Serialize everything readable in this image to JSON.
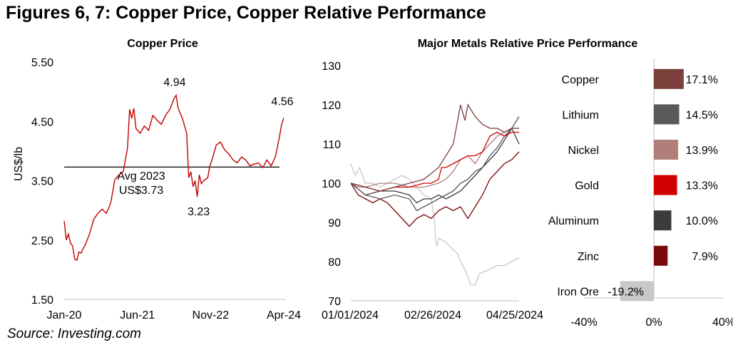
{
  "header": {
    "title": "Figures 6, 7: Copper Price, Copper Relative Performance",
    "source": "Source: Investing.com"
  },
  "colors": {
    "copper_line": "#c00000",
    "avg_line": "#000000",
    "Copper": "#7b3f3c",
    "Lithium": "#5a5a5a",
    "Nickel": "#b07f7a",
    "Gold": "#d00000",
    "Aluminum": "#3c3c3c",
    "Zinc": "#7a0a0a",
    "Iron Ore": "#c8c8c8"
  },
  "chart_data": [
    {
      "id": "copper-price",
      "type": "line",
      "title": "Copper Price",
      "ylabel": "US$/lb",
      "xlabel": "",
      "ylim": [
        1.5,
        5.5
      ],
      "yticks": [
        "1.50",
        "2.50",
        "3.50",
        "4.50",
        "5.50"
      ],
      "xtick_labels": [
        "Jan-20",
        "Jun-21",
        "Nov-22",
        "Apr-24"
      ],
      "x_range_months": [
        0,
        52
      ],
      "series": [
        {
          "name": "Copper",
          "points": [
            [
              0,
              2.82
            ],
            [
              0.5,
              2.5
            ],
            [
              1,
              2.6
            ],
            [
              1.5,
              2.45
            ],
            [
              2,
              2.4
            ],
            [
              2.5,
              2.18
            ],
            [
              3,
              2.16
            ],
            [
              3.5,
              2.3
            ],
            [
              4,
              2.28
            ],
            [
              4.5,
              2.36
            ],
            [
              5,
              2.42
            ],
            [
              6,
              2.6
            ],
            [
              7,
              2.85
            ],
            [
              8,
              2.95
            ],
            [
              9,
              3.02
            ],
            [
              10,
              2.95
            ],
            [
              11,
              3.12
            ],
            [
              12,
              3.52
            ],
            [
              13,
              3.6
            ],
            [
              14,
              3.65
            ],
            [
              15,
              4.05
            ],
            [
              15.5,
              4.7
            ],
            [
              16,
              4.55
            ],
            [
              16.5,
              4.72
            ],
            [
              17,
              4.38
            ],
            [
              18,
              4.3
            ],
            [
              19,
              4.42
            ],
            [
              20,
              4.35
            ],
            [
              21,
              4.6
            ],
            [
              22,
              4.52
            ],
            [
              23,
              4.45
            ],
            [
              24,
              4.6
            ],
            [
              25,
              4.7
            ],
            [
              26,
              4.88
            ],
            [
              26.5,
              4.94
            ],
            [
              27,
              4.72
            ],
            [
              28,
              4.55
            ],
            [
              29,
              4.3
            ],
            [
              29.5,
              3.55
            ],
            [
              30,
              3.65
            ],
            [
              30.5,
              3.4
            ],
            [
              31,
              3.5
            ],
            [
              31.5,
              3.23
            ],
            [
              32,
              3.6
            ],
            [
              32.5,
              3.45
            ],
            [
              33,
              3.5
            ],
            [
              34,
              3.55
            ],
            [
              34.5,
              3.75
            ],
            [
              35,
              3.85
            ],
            [
              36,
              4.1
            ],
            [
              37,
              4.15
            ],
            [
              38,
              4.02
            ],
            [
              39,
              3.95
            ],
            [
              40,
              3.85
            ],
            [
              41,
              3.8
            ],
            [
              42,
              3.9
            ],
            [
              43,
              3.85
            ],
            [
              44,
              3.75
            ],
            [
              45,
              3.78
            ],
            [
              46,
              3.8
            ],
            [
              47,
              3.72
            ],
            [
              48,
              3.85
            ],
            [
              49,
              3.75
            ],
            [
              50,
              3.9
            ],
            [
              51,
              4.25
            ],
            [
              51.5,
              4.45
            ],
            [
              52,
              4.56
            ]
          ]
        }
      ],
      "reference_line": {
        "value": 3.73,
        "label_line1": "Avg 2023",
        "label_line2": "US$3.73"
      },
      "annotations": [
        {
          "label": "4.94",
          "x": 26.5,
          "y": 4.94
        },
        {
          "label": "3.23",
          "x": 31.5,
          "y": 3.23
        },
        {
          "label": "4.56",
          "x": 52,
          "y": 4.56
        }
      ]
    },
    {
      "id": "metals-relative",
      "type": "line",
      "title": "Major Metals Relative Price Performance",
      "ylim": [
        70,
        130
      ],
      "yticks": [
        "70",
        "80",
        "90",
        "100",
        "110",
        "120",
        "130"
      ],
      "xtick_labels": [
        "01/01/2024",
        "02/26/2024",
        "04/25/2024"
      ],
      "x_range_days": [
        0,
        115
      ],
      "series": [
        {
          "name": "Copper",
          "points": [
            [
              0,
              100
            ],
            [
              10,
              99
            ],
            [
              20,
              98
            ],
            [
              30,
              99
            ],
            [
              40,
              100
            ],
            [
              50,
              101
            ],
            [
              60,
              104
            ],
            [
              70,
              110
            ],
            [
              75,
              120
            ],
            [
              78,
              116
            ],
            [
              80,
              120
            ],
            [
              85,
              117
            ],
            [
              90,
              115
            ],
            [
              95,
              114
            ],
            [
              100,
              114
            ],
            [
              105,
              113
            ],
            [
              110,
              114
            ],
            [
              115,
              114
            ]
          ]
        },
        {
          "name": "Lithium",
          "points": [
            [
              0,
              100
            ],
            [
              10,
              97
            ],
            [
              20,
              96
            ],
            [
              30,
              97
            ],
            [
              40,
              96
            ],
            [
              45,
              93
            ],
            [
              50,
              94
            ],
            [
              55,
              95
            ],
            [
              60,
              96
            ],
            [
              65,
              97
            ],
            [
              70,
              98
            ],
            [
              75,
              100
            ],
            [
              80,
              101
            ],
            [
              85,
              103
            ],
            [
              90,
              104
            ],
            [
              95,
              107
            ],
            [
              100,
              109
            ],
            [
              105,
              112
            ],
            [
              110,
              114
            ],
            [
              115,
              117
            ]
          ]
        },
        {
          "name": "Nickel",
          "points": [
            [
              0,
              100
            ],
            [
              5,
              99
            ],
            [
              10,
              99
            ],
            [
              20,
              100
            ],
            [
              30,
              100
            ],
            [
              40,
              99
            ],
            [
              50,
              99
            ],
            [
              60,
              100
            ],
            [
              65,
              101
            ],
            [
              70,
              103
            ],
            [
              75,
              106
            ],
            [
              80,
              107
            ],
            [
              85,
              105
            ],
            [
              90,
              108
            ],
            [
              95,
              110
            ],
            [
              100,
              112
            ],
            [
              105,
              113
            ],
            [
              110,
              114
            ],
            [
              115,
              114
            ]
          ]
        },
        {
          "name": "Gold",
          "points": [
            [
              0,
              100
            ],
            [
              10,
              99
            ],
            [
              20,
              98
            ],
            [
              30,
              99
            ],
            [
              40,
              99
            ],
            [
              50,
              100
            ],
            [
              55,
              100
            ],
            [
              60,
              101
            ],
            [
              62,
              104
            ],
            [
              65,
              104
            ],
            [
              70,
              105
            ],
            [
              75,
              106
            ],
            [
              80,
              107
            ],
            [
              85,
              107
            ],
            [
              90,
              108
            ],
            [
              95,
              112
            ],
            [
              100,
              113
            ],
            [
              105,
              112
            ],
            [
              110,
              113
            ],
            [
              115,
              113
            ]
          ]
        },
        {
          "name": "Aluminum",
          "points": [
            [
              0,
              100
            ],
            [
              10,
              97
            ],
            [
              20,
              98
            ],
            [
              30,
              98
            ],
            [
              40,
              97
            ],
            [
              45,
              95
            ],
            [
              50,
              96
            ],
            [
              55,
              96
            ],
            [
              60,
              97
            ],
            [
              65,
              96
            ],
            [
              70,
              97
            ],
            [
              75,
              98
            ],
            [
              80,
              100
            ],
            [
              85,
              102
            ],
            [
              90,
              104
            ],
            [
              95,
              106
            ],
            [
              100,
              108
            ],
            [
              105,
              111
            ],
            [
              110,
              114
            ],
            [
              115,
              110
            ]
          ]
        },
        {
          "name": "Zinc",
          "points": [
            [
              0,
              100
            ],
            [
              5,
              97
            ],
            [
              10,
              96
            ],
            [
              15,
              95
            ],
            [
              20,
              96
            ],
            [
              25,
              95
            ],
            [
              30,
              93
            ],
            [
              35,
              91
            ],
            [
              40,
              89
            ],
            [
              45,
              91
            ],
            [
              50,
              92
            ],
            [
              55,
              91
            ],
            [
              60,
              93
            ],
            [
              65,
              94
            ],
            [
              70,
              93
            ],
            [
              75,
              94
            ],
            [
              80,
              91
            ],
            [
              85,
              94
            ],
            [
              90,
              97
            ],
            [
              95,
              101
            ],
            [
              100,
              103
            ],
            [
              105,
              105
            ],
            [
              110,
              106
            ],
            [
              115,
              108
            ]
          ]
        },
        {
          "name": "Iron Ore",
          "points": [
            [
              0,
              105
            ],
            [
              3,
              102
            ],
            [
              6,
              104
            ],
            [
              10,
              100
            ],
            [
              15,
              100
            ],
            [
              20,
              99
            ],
            [
              25,
              100
            ],
            [
              30,
              101
            ],
            [
              35,
              102
            ],
            [
              40,
              101
            ],
            [
              45,
              99
            ],
            [
              50,
              97
            ],
            [
              55,
              96
            ],
            [
              57,
              91
            ],
            [
              58,
              85
            ],
            [
              59,
              84
            ],
            [
              60,
              86
            ],
            [
              65,
              85
            ],
            [
              70,
              83
            ],
            [
              73,
              82
            ],
            [
              75,
              80
            ],
            [
              78,
              78
            ],
            [
              80,
              76
            ],
            [
              82,
              74
            ],
            [
              85,
              74
            ],
            [
              88,
              77
            ],
            [
              95,
              78
            ],
            [
              100,
              79
            ],
            [
              105,
              79
            ],
            [
              110,
              80
            ],
            [
              115,
              81
            ]
          ]
        }
      ]
    },
    {
      "id": "relative-bars",
      "type": "bar",
      "orientation": "horizontal",
      "categories": [
        "Copper",
        "Lithium",
        "Nickel",
        "Gold",
        "Aluminum",
        "Zinc",
        "Iron Ore"
      ],
      "values": [
        17.1,
        14.5,
        13.9,
        13.3,
        10.0,
        7.9,
        -19.2
      ],
      "value_labels": [
        "17.1%",
        "14.5%",
        "13.9%",
        "13.3%",
        "10.0%",
        "7.9%",
        "-19.2%"
      ],
      "xlim": [
        -40,
        40
      ],
      "xtick_labels": [
        "-40%",
        "0%",
        "40%"
      ]
    }
  ]
}
